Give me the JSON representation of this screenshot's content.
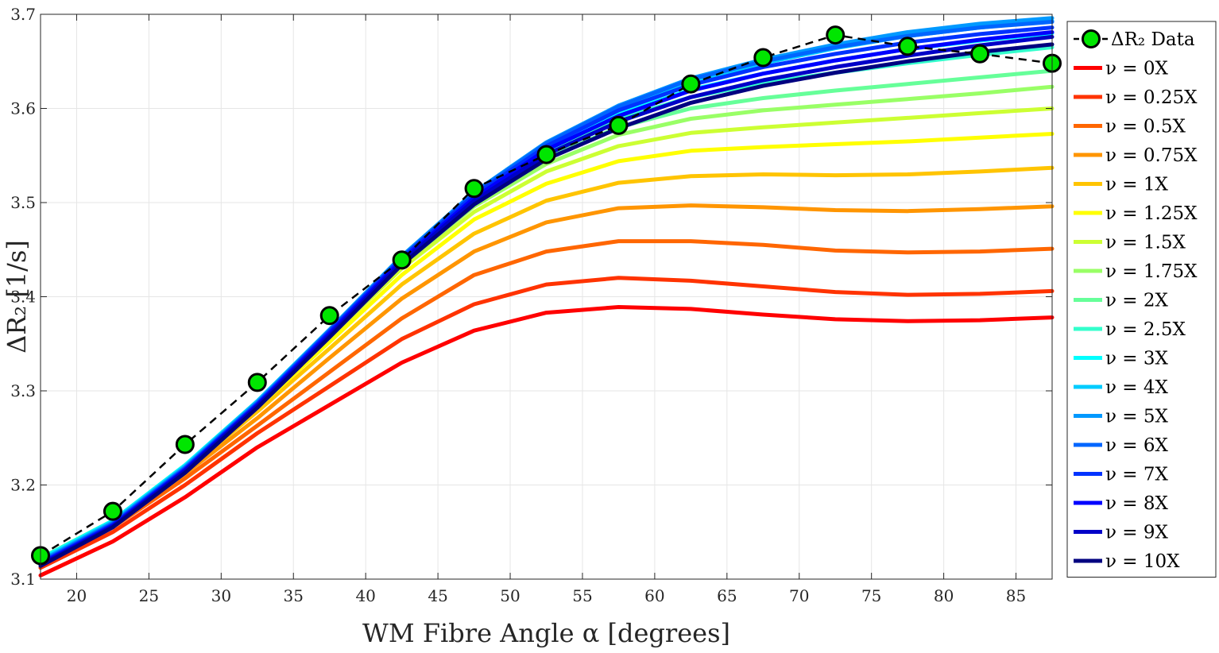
{
  "chart_data": {
    "type": "line",
    "xlabel": "WM Fibre Angle α [degrees]",
    "ylabel": "ΔR₂ [1/s]",
    "xlim": [
      17.5,
      87.5
    ],
    "ylim": [
      3.1,
      3.7
    ],
    "xticks": [
      20,
      25,
      30,
      35,
      40,
      45,
      50,
      55,
      60,
      65,
      70,
      75,
      80,
      85
    ],
    "yticks": [
      3.1,
      3.2,
      3.3,
      3.4,
      3.5,
      3.6,
      3.7
    ],
    "grid": true,
    "legend_position": "right-outside",
    "x": [
      17.5,
      22.5,
      27.5,
      32.5,
      37.5,
      42.5,
      47.5,
      52.5,
      57.5,
      62.5,
      67.5,
      72.5,
      77.5,
      82.5,
      87.5
    ],
    "data_series": {
      "name": "ΔR₂ Data",
      "color": "#00e600",
      "x": [
        17.5,
        22.5,
        27.5,
        32.5,
        37.5,
        42.5,
        47.5,
        52.5,
        57.5,
        62.5,
        67.5,
        72.5,
        77.5,
        82.5,
        87.5
      ],
      "values": [
        3.125,
        3.172,
        3.243,
        3.309,
        3.38,
        3.439,
        3.515,
        3.551,
        3.582,
        3.626,
        3.654,
        3.678,
        3.666,
        3.658,
        3.648
      ]
    },
    "series": [
      {
        "name": "ν = 0X",
        "color": "#ff0000",
        "values": [
          3.104,
          3.14,
          3.187,
          3.24,
          3.285,
          3.33,
          3.364,
          3.383,
          3.389,
          3.387,
          3.381,
          3.376,
          3.374,
          3.375,
          3.378
        ]
      },
      {
        "name": "ν = 0.25X",
        "color": "#ff3300",
        "values": [
          3.112,
          3.15,
          3.2,
          3.255,
          3.305,
          3.355,
          3.392,
          3.413,
          3.42,
          3.417,
          3.411,
          3.405,
          3.402,
          3.403,
          3.406
        ]
      },
      {
        "name": "ν = 0.5X",
        "color": "#ff6600",
        "values": [
          3.116,
          3.155,
          3.207,
          3.263,
          3.32,
          3.377,
          3.423,
          3.448,
          3.459,
          3.459,
          3.455,
          3.449,
          3.447,
          3.448,
          3.451
        ]
      },
      {
        "name": "ν = 0.75X",
        "color": "#ff9500",
        "values": [
          3.118,
          3.157,
          3.212,
          3.271,
          3.335,
          3.398,
          3.448,
          3.479,
          3.494,
          3.497,
          3.495,
          3.492,
          3.491,
          3.493,
          3.496
        ]
      },
      {
        "name": "ν = 1X",
        "color": "#ffc400",
        "values": [
          3.12,
          3.159,
          3.215,
          3.278,
          3.345,
          3.413,
          3.467,
          3.502,
          3.521,
          3.528,
          3.53,
          3.529,
          3.53,
          3.533,
          3.537
        ]
      },
      {
        "name": "ν = 1.25X",
        "color": "#ffff00",
        "values": [
          3.121,
          3.16,
          3.217,
          3.282,
          3.352,
          3.423,
          3.482,
          3.52,
          3.544,
          3.555,
          3.559,
          3.562,
          3.565,
          3.569,
          3.573
        ]
      },
      {
        "name": "ν = 1.5X",
        "color": "#ccff33",
        "values": [
          3.122,
          3.161,
          3.219,
          3.285,
          3.357,
          3.43,
          3.49,
          3.533,
          3.56,
          3.574,
          3.58,
          3.585,
          3.59,
          3.595,
          3.6
        ]
      },
      {
        "name": "ν = 1.75X",
        "color": "#99ff66",
        "values": [
          3.122,
          3.162,
          3.22,
          3.287,
          3.36,
          3.434,
          3.496,
          3.541,
          3.572,
          3.589,
          3.598,
          3.604,
          3.61,
          3.616,
          3.623
        ]
      },
      {
        "name": "ν = 2X",
        "color": "#66ff99",
        "values": [
          3.122,
          3.162,
          3.221,
          3.288,
          3.362,
          3.437,
          3.5,
          3.547,
          3.58,
          3.6,
          3.611,
          3.619,
          3.626,
          3.633,
          3.64
        ]
      },
      {
        "name": "ν = 2.5X",
        "color": "#33ffcc",
        "values": [
          3.122,
          3.162,
          3.221,
          3.289,
          3.364,
          3.44,
          3.505,
          3.553,
          3.589,
          3.612,
          3.627,
          3.638,
          3.648,
          3.657,
          3.665
        ]
      },
      {
        "name": "ν = 3X",
        "color": "#00ffff",
        "values": [
          3.121,
          3.162,
          3.221,
          3.289,
          3.365,
          3.441,
          3.507,
          3.557,
          3.594,
          3.62,
          3.637,
          3.651,
          3.663,
          3.672,
          3.68
        ]
      },
      {
        "name": "ν = 4X",
        "color": "#00ccff",
        "values": [
          3.12,
          3.161,
          3.22,
          3.289,
          3.365,
          3.443,
          3.51,
          3.562,
          3.601,
          3.628,
          3.648,
          3.664,
          3.677,
          3.686,
          3.693
        ]
      },
      {
        "name": "ν = 5X",
        "color": "#0099ff",
        "values": [
          3.119,
          3.16,
          3.219,
          3.288,
          3.365,
          3.443,
          3.511,
          3.564,
          3.603,
          3.632,
          3.652,
          3.668,
          3.681,
          3.69,
          3.696
        ]
      },
      {
        "name": "ν = 6X",
        "color": "#0066ff",
        "values": [
          3.118,
          3.159,
          3.218,
          3.287,
          3.364,
          3.442,
          3.51,
          3.563,
          3.602,
          3.631,
          3.65,
          3.665,
          3.677,
          3.686,
          3.692
        ]
      },
      {
        "name": "ν = 7X",
        "color": "#0033ff",
        "values": [
          3.117,
          3.158,
          3.217,
          3.286,
          3.363,
          3.441,
          3.508,
          3.56,
          3.598,
          3.625,
          3.644,
          3.658,
          3.67,
          3.679,
          3.686
        ]
      },
      {
        "name": "ν = 8X",
        "color": "#0000ff",
        "values": [
          3.116,
          3.157,
          3.216,
          3.285,
          3.361,
          3.439,
          3.505,
          3.556,
          3.592,
          3.619,
          3.637,
          3.651,
          3.663,
          3.673,
          3.681
        ]
      },
      {
        "name": "ν = 9X",
        "color": "#0000c8",
        "values": [
          3.115,
          3.156,
          3.215,
          3.284,
          3.359,
          3.437,
          3.502,
          3.551,
          3.586,
          3.612,
          3.63,
          3.644,
          3.656,
          3.667,
          3.676
        ]
      },
      {
        "name": "ν = 10X",
        "color": "#000080",
        "values": [
          3.114,
          3.155,
          3.213,
          3.282,
          3.357,
          3.434,
          3.498,
          3.546,
          3.579,
          3.606,
          3.624,
          3.638,
          3.65,
          3.66,
          3.668
        ]
      }
    ]
  }
}
